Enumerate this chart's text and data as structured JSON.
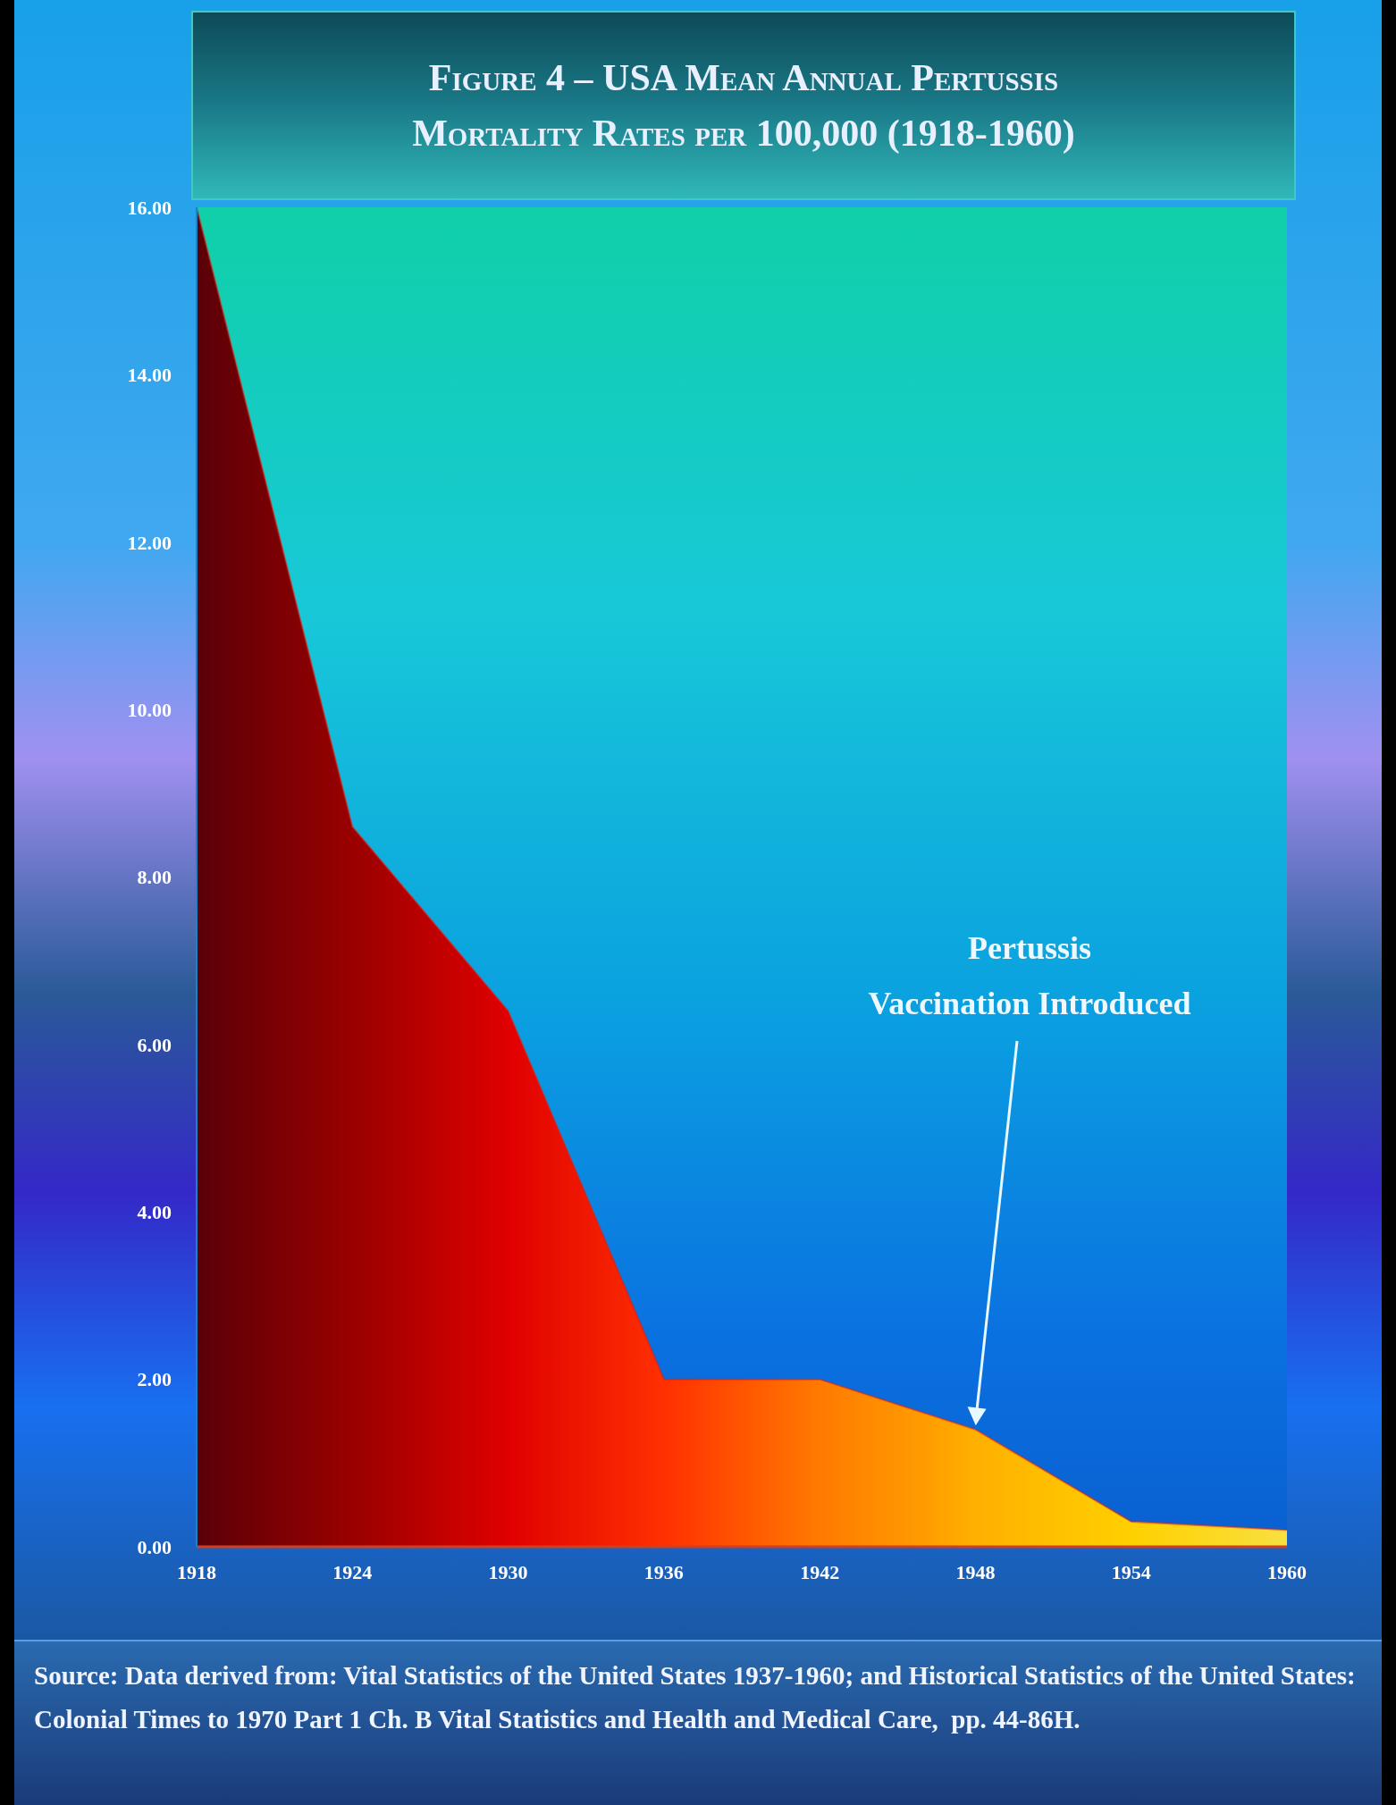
{
  "chart_data": {
    "type": "area",
    "title": "Figure 4 – USA Mean Annual Pertussis\nMortality Rates per 100,000 (1918-1960)",
    "x": [
      1918,
      1924,
      1930,
      1936,
      1942,
      1946,
      1948,
      1954,
      1960
    ],
    "series": [
      {
        "values": [
          16,
          8.6,
          6.4,
          2.0,
          2.0,
          1.6,
          1.4,
          0.3,
          0.2
        ],
        "color": "#e81808",
        "colors": [
          "#5a0008",
          "#9a0000",
          "#e00000",
          "#ff3000",
          "#ff7a00",
          "#ff9c00",
          "#ffb000",
          "#ffd000",
          "#f8e040"
        ]
      }
    ],
    "xlim": [
      1918,
      1960
    ],
    "xticks": [
      1918,
      1924,
      1930,
      1936,
      1942,
      1948,
      1954,
      1960
    ],
    "ylim": [
      0,
      16
    ],
    "yticks": [
      {
        "value": 0,
        "label": "0.00"
      },
      {
        "value": 2,
        "label": "2.00"
      },
      {
        "value": 4,
        "label": "4.00"
      },
      {
        "value": 6,
        "label": "6.00"
      },
      {
        "value": 8,
        "label": "8.00"
      },
      {
        "value": 10,
        "label": "10.00"
      },
      {
        "value": 12,
        "label": "12.00"
      },
      {
        "value": 14,
        "label": "14.00"
      },
      {
        "value": 16,
        "label": "16.00"
      }
    ],
    "grid": false,
    "legend": false,
    "marker": "none",
    "annotations": [
      "Pertussis\nVaccination Introduced",
      "Source: Data derived from: Vital Statistics of the United States 1937-1960; and Historical Statistics of the United States: Colonial Times to 1970 Part 1 Ch. B Vital Statistics and Health and Medical Care,  pp. 44-86H."
    ]
  }
}
